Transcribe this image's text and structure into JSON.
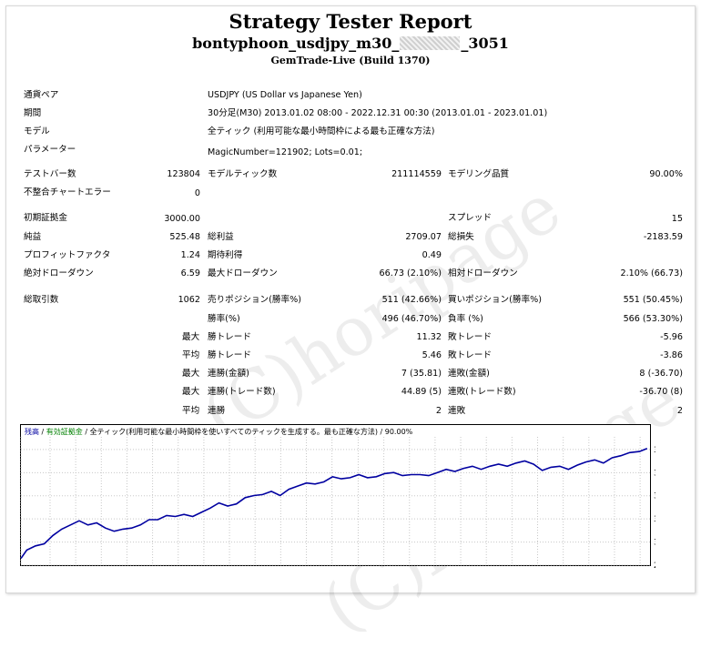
{
  "header": {
    "title": "Strategy Tester Report",
    "subtitle_left": "bontyphoon_usdjpy_m30_",
    "subtitle_right": "_3051",
    "build": "GemTrade-Live (Build 1370)"
  },
  "info": [
    {
      "label": "通貨ペア",
      "value": "USDJPY (US Dollar vs Japanese Yen)"
    },
    {
      "label": "期間",
      "value": "30分足(M30) 2013.01.02 08:00 - 2022.12.31 00:30 (2013.01.01 - 2023.01.01)"
    },
    {
      "label": "モデル",
      "value": "全ティック (利用可能な最小時間枠による最も正確な方法)"
    },
    {
      "label": "パラメーター",
      "value": "MagicNumber=121902; Lots=0.01;"
    }
  ],
  "stats": {
    "bars_label": "テストバー数",
    "bars": "123804",
    "ticks_label": "モデルティック数",
    "ticks": "211114559",
    "quality_label": "モデリング品質",
    "quality": "90.00%",
    "mismatch_label": "不整合チャートエラー",
    "mismatch": "0",
    "deposit_label": "初期証拠金",
    "deposit": "3000.00",
    "spread_label": "スプレッド",
    "spread": "15",
    "net_label": "純益",
    "net": "525.48",
    "gross_profit_label": "総利益",
    "gross_profit": "2709.07",
    "gross_loss_label": "総損失",
    "gross_loss": "-2183.59",
    "pf_label": "プロフィットファクタ",
    "pf": "1.24",
    "expected_label": "期待利得",
    "expected": "0.49",
    "abs_dd_label": "絶対ドローダウン",
    "abs_dd": "6.59",
    "max_dd_label": "最大ドローダウン",
    "max_dd": "66.73 (2.10%)",
    "rel_dd_label": "相対ドローダウン",
    "rel_dd": "2.10% (66.73)",
    "trades_label": "総取引数",
    "trades": "1062",
    "short_label": "売りポジション(勝率%)",
    "short": "511 (42.66%)",
    "long_label": "買いポジション(勝率%)",
    "long": "551 (50.45%)",
    "win_label": "勝率(%)",
    "win": "496 (46.70%)",
    "loss_label": "負率 (%)",
    "loss": "566 (53.30%)",
    "max_prefix": "最大",
    "avg_prefix": "平均",
    "largest_win_label": "勝トレード",
    "largest_win": "11.32",
    "largest_loss_label": "敗トレード",
    "largest_loss": "-5.96",
    "avg_win_label": "勝トレード",
    "avg_win": "5.46",
    "avg_loss_label": "敗トレード",
    "avg_loss": "-3.86",
    "max_cons_win_money_label": "連勝(金額)",
    "max_cons_win_money": "7 (35.81)",
    "max_cons_loss_money_label": "連敗(金額)",
    "max_cons_loss_money": "8 (-36.70)",
    "max_cons_profit_label": "連勝(トレード数)",
    "max_cons_profit": "44.89 (5)",
    "max_cons_lossamt_label": "連敗(トレード数)",
    "max_cons_lossamt": "-36.70 (8)",
    "avg_cons_win_label": "連勝",
    "avg_cons_win": "2",
    "avg_cons_loss_label": "連敗",
    "avg_cons_loss": "2"
  },
  "watermark_text": "(C)horipage",
  "chart_data": {
    "type": "line",
    "legend": {
      "balance": "残高",
      "separator1": " / ",
      "equity": "有効証拠金",
      "separator2": " / ",
      "model": "全ティック(利用可能な最小時間枠を使いすべてのティックを生成する。最も正確な方法)",
      "separator3": " / ",
      "quality": "90.00%"
    },
    "x_ticks": [
      "0",
      "50",
      "94",
      "138",
      "182",
      "226",
      "270",
      "314",
      "358",
      "402",
      "446",
      "490",
      "534",
      "579",
      "623",
      "667",
      "711",
      "755",
      "799",
      "843",
      "887",
      "931",
      "975",
      "1019",
      "1063"
    ],
    "y_ticks": [
      "2968",
      "3078",
      "3189",
      "3299",
      "3409",
      "3520"
    ],
    "xlim": [
      0,
      1080
    ],
    "ylim": [
      2968,
      3580
    ],
    "line_color": "#0000a0",
    "x": [
      0,
      10,
      25,
      40,
      55,
      70,
      85,
      100,
      115,
      130,
      145,
      160,
      175,
      190,
      205,
      220,
      235,
      250,
      265,
      280,
      295,
      310,
      325,
      340,
      355,
      370,
      385,
      400,
      415,
      430,
      445,
      460,
      475,
      490,
      505,
      520,
      535,
      550,
      565,
      580,
      595,
      610,
      625,
      640,
      655,
      670,
      685,
      700,
      715,
      730,
      745,
      760,
      775,
      790,
      805,
      820,
      835,
      850,
      865,
      880,
      895,
      910,
      925,
      940,
      955,
      970,
      985,
      1000,
      1015,
      1030,
      1045,
      1062,
      1075
    ],
    "y": [
      3000,
      3040,
      3060,
      3070,
      3110,
      3140,
      3160,
      3180,
      3160,
      3170,
      3145,
      3130,
      3140,
      3145,
      3160,
      3185,
      3185,
      3205,
      3200,
      3210,
      3200,
      3220,
      3240,
      3265,
      3250,
      3260,
      3290,
      3300,
      3305,
      3320,
      3300,
      3330,
      3345,
      3360,
      3355,
      3365,
      3390,
      3380,
      3385,
      3400,
      3385,
      3390,
      3405,
      3410,
      3395,
      3400,
      3400,
      3395,
      3410,
      3425,
      3415,
      3430,
      3440,
      3425,
      3440,
      3450,
      3440,
      3455,
      3465,
      3450,
      3420,
      3435,
      3440,
      3425,
      3445,
      3460,
      3470,
      3455,
      3480,
      3490,
      3505,
      3510,
      3525
    ]
  }
}
